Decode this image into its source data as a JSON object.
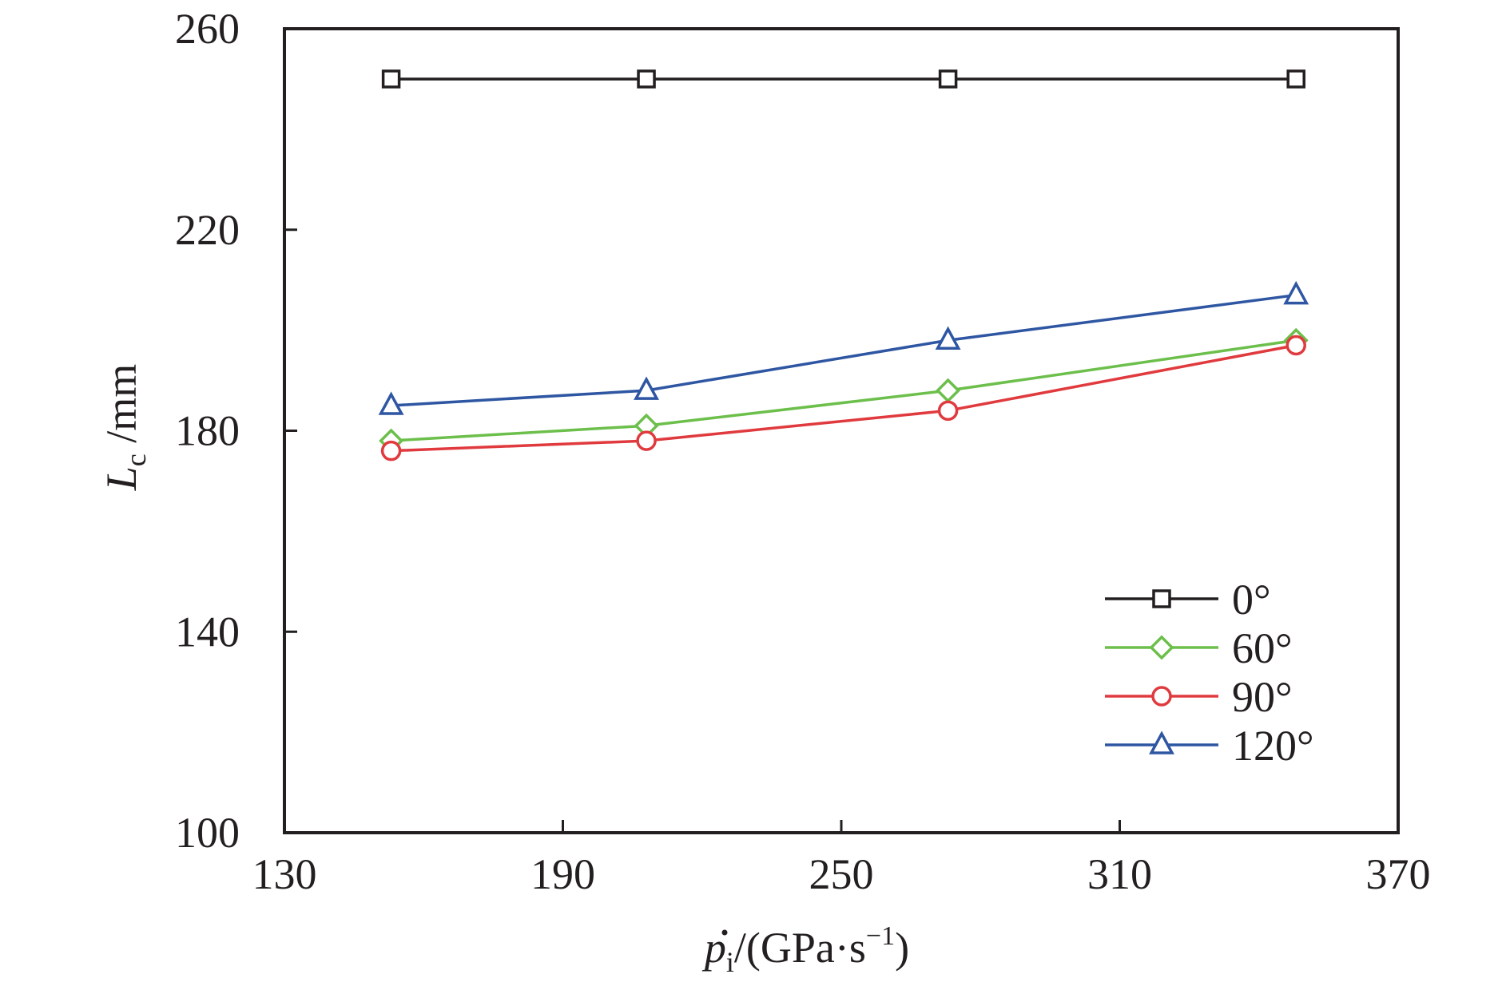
{
  "chart_data": {
    "type": "line",
    "title": "",
    "xlabel": {
      "symbol": "p",
      "subscript": "i",
      "unit_prefix": "/(GPa·s",
      "unit_exponent": "−1",
      "unit_suffix": ")"
    },
    "ylabel": {
      "symbol": "L",
      "subscript": "c",
      "unit": " /mm"
    },
    "xlim": [
      130,
      370
    ],
    "ylim": [
      100,
      260
    ],
    "xticks": [
      130,
      190,
      250,
      310,
      370
    ],
    "yticks": [
      100,
      140,
      180,
      220,
      260
    ],
    "grid": false,
    "legend_position": "bottom-right",
    "x": [
      153,
      208,
      273,
      348
    ],
    "series": [
      {
        "name": "0°",
        "color": "#231f20",
        "marker": "square",
        "values": [
          250,
          250,
          250,
          250
        ]
      },
      {
        "name": "60°",
        "color": "#6cbf4b",
        "marker": "diamond",
        "values": [
          178,
          181,
          188,
          198
        ]
      },
      {
        "name": "90°",
        "color": "#e03a3e",
        "marker": "circle",
        "values": [
          176,
          178,
          184,
          197
        ]
      },
      {
        "name": "120°",
        "color": "#2e56a2",
        "marker": "triangle",
        "values": [
          185,
          188,
          198,
          207
        ]
      }
    ]
  }
}
